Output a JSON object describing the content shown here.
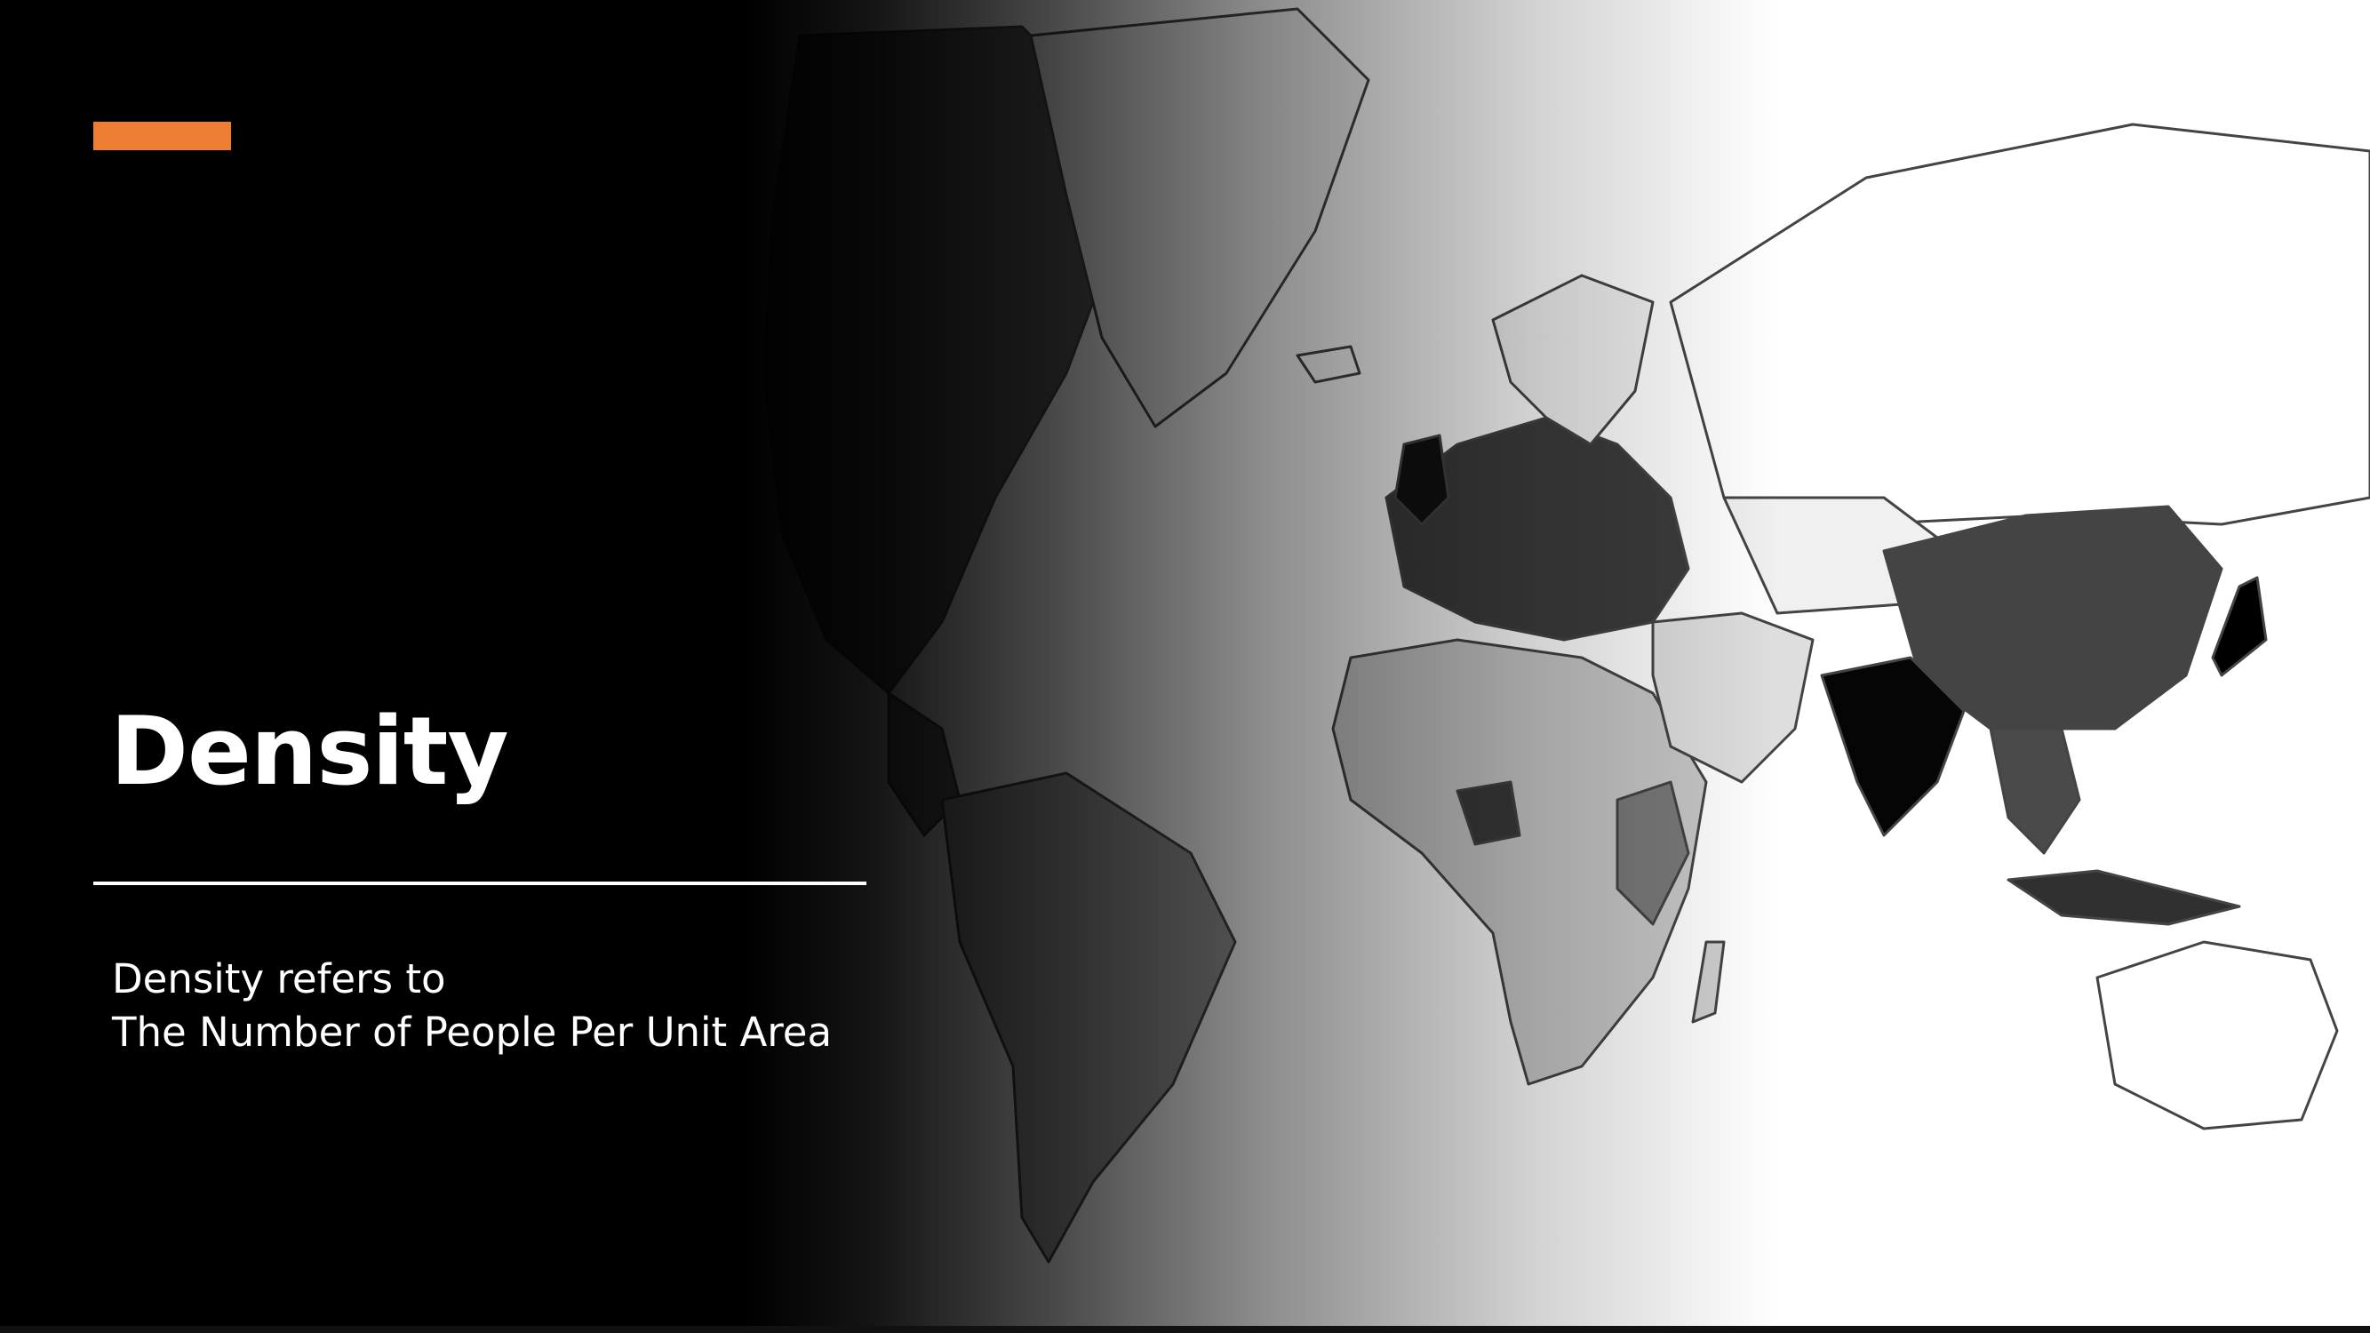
{
  "slide": {
    "title": "Density",
    "subtitle_lines": [
      "Density refers to",
      "The Number of People Per Unit Area"
    ],
    "accent_color": "#ED7D31",
    "background_image": "world-population-density-map"
  }
}
